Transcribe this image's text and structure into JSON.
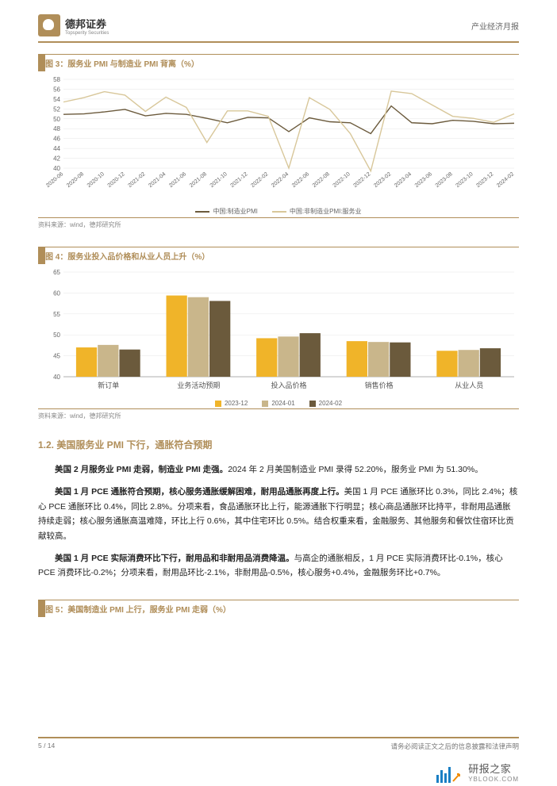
{
  "header": {
    "company": "德邦证券",
    "company_en": "Topsperity Securities",
    "doc_type": "产业经济月报"
  },
  "fig3": {
    "title": "图 3：服务业 PMI 与制造业 PMI 背离（%）",
    "type": "line",
    "ylim": [
      40,
      58
    ],
    "ytick_step": 2,
    "categories": [
      "2020-06",
      "2020-08",
      "2020-10",
      "2020-12",
      "2021-02",
      "2021-04",
      "2021-06",
      "2021-08",
      "2021-10",
      "2021-12",
      "2022-02",
      "2022-04",
      "2022-06",
      "2022-08",
      "2022-10",
      "2022-12",
      "2023-02",
      "2023-04",
      "2023-06",
      "2023-08",
      "2023-10",
      "2023-12",
      "2024-02"
    ],
    "series": [
      {
        "name": "中国:制造业PMI",
        "color": "#6b5a3c",
        "values": [
          50.9,
          51.0,
          51.4,
          51.9,
          50.6,
          51.1,
          50.9,
          50.1,
          49.2,
          50.3,
          50.2,
          47.4,
          50.2,
          49.4,
          49.2,
          47.0,
          52.6,
          49.2,
          49.0,
          49.7,
          49.5,
          49.0,
          49.1
        ]
      },
      {
        "name": "中国:非制造业PMI:服务业",
        "color": "#d8c79a",
        "values": [
          53.4,
          54.3,
          55.5,
          54.8,
          51.5,
          54.4,
          52.3,
          45.2,
          51.6,
          51.6,
          50.5,
          40.0,
          54.3,
          51.9,
          47.0,
          39.4,
          55.6,
          55.1,
          52.8,
          50.5,
          50.1,
          49.3,
          51.0
        ]
      }
    ],
    "legend": [
      "中国:制造业PMI",
      "中国:非制造业PMI:服务业"
    ],
    "source": "资料来源：wind，德邦研究所",
    "background_color": "#ffffff",
    "grid_color": "#e6e6e6",
    "label_fontsize": 8
  },
  "fig4": {
    "title": "图 4：服务业投入品价格和从业人员上升（%）",
    "type": "bar",
    "ylim": [
      40,
      65
    ],
    "ytick_step": 5,
    "categories": [
      "新订单",
      "业务活动预期",
      "投入品价格",
      "销售价格",
      "从业人员"
    ],
    "series": [
      {
        "name": "2023-12",
        "color": "#f0b429",
        "values": [
          47.0,
          59.4,
          49.2,
          48.5,
          46.2
        ]
      },
      {
        "name": "2024-01",
        "color": "#c9b68b",
        "values": [
          47.6,
          59.0,
          49.6,
          48.3,
          46.4
        ]
      },
      {
        "name": "2024-02",
        "color": "#6b5a3c",
        "values": [
          46.5,
          58.1,
          50.4,
          48.2,
          46.8
        ]
      }
    ],
    "legend": [
      "2023-12",
      "2024-01",
      "2024-02"
    ],
    "source": "资料来源：wind，德邦研究所",
    "background_color": "#ffffff",
    "grid_color": "#e6e6e6",
    "bar_width": 0.24,
    "label_fontsize": 8
  },
  "section": {
    "heading": "1.2. 美国服务业 PMI 下行，通胀符合预期",
    "p1": {
      "bold": "美国 2 月服务业 PMI 走弱，制造业 PMI 走强。",
      "rest": "2024 年 2 月美国制造业 PMI 录得 52.20%，服务业 PMI 为 51.30%。"
    },
    "p2": {
      "bold": "美国 1 月 PCE 通胀符合预期，核心服务通胀缓解困难，耐用品通胀再度上行。",
      "rest": "美国 1 月 PCE 通胀环比 0.3%，同比 2.4%；核心 PCE 通胀环比 0.4%，同比 2.8%。分项来看，食品通胀环比上行，能源通胀下行明显；核心商品通胀环比持平，非耐用品通胀持续走弱；核心服务通胀高温难降，环比上行 0.6%，其中住宅环比 0.5%。结合权重来看，金融服务、其他服务和餐饮住宿环比贡献较高。"
    },
    "p3": {
      "bold": "美国 1 月 PCE 实际消费环比下行，耐用品和非耐用品消费降温。",
      "rest": "与高企的通胀相反，1 月 PCE 实际消费环比-0.1%，核心 PCE 消费环比-0.2%；分项来看，耐用品环比-2.1%，非耐用品-0.5%，核心服务+0.4%，金融服务环比+0.7%。"
    }
  },
  "fig5": {
    "title": "图 5：美国制造业 PMI 上行，服务业 PMI 走弱（%）"
  },
  "footer": {
    "page": "5 / 14",
    "disclaimer": "请务必阅读正文之后的信息披露和法律声明"
  },
  "watermark": {
    "name": "研报之家",
    "url": "YBLOOK.COM",
    "bar_color": "#1a7fc4",
    "arrow_color": "#f28c00"
  }
}
